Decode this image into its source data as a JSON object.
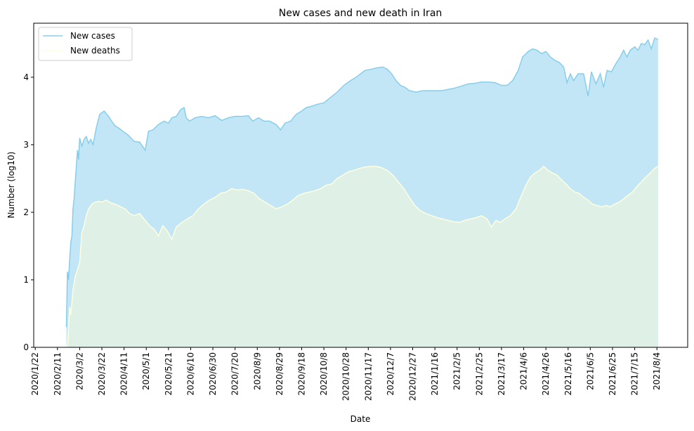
{
  "chart_data": {
    "type": "area",
    "title": "New cases and new death in Iran",
    "xlabel": "Date",
    "ylabel": "Number (log10)",
    "ylim": [
      0,
      4.8
    ],
    "yticks": [
      "0",
      "1",
      "2",
      "3",
      "4"
    ],
    "xticks": [
      "2020/1/22",
      "2020/2/11",
      "2020/3/2",
      "2020/3/22",
      "2020/4/11",
      "2020/5/1",
      "2020/5/21",
      "2020/6/10",
      "2020/6/30",
      "2020/7/20",
      "2020/8/9",
      "2020/8/29",
      "2020/9/18",
      "2020/10/8",
      "2020/10/28",
      "2020/11/17",
      "2020/12/7",
      "2020/12/27",
      "2021/1/16",
      "2021/2/5",
      "2021/2/25",
      "2021/3/17",
      "2021/4/6",
      "2021/4/26",
      "2021/5/16",
      "2021/6/5",
      "2021/6/25",
      "2021/7/15",
      "2021/8/4"
    ],
    "legend_position": "top-left",
    "grid": false,
    "series": [
      {
        "name": "New cases",
        "color": "#87ceeb",
        "fill": "#c2e6f5",
        "points": [
          [
            "2020/2/19",
            0.3
          ],
          [
            "2020/2/20",
            1.12
          ],
          [
            "2020/2/21",
            1.0
          ],
          [
            "2020/2/22",
            1.3
          ],
          [
            "2020/2/23",
            1.55
          ],
          [
            "2020/2/24",
            1.65
          ],
          [
            "2020/2/25",
            2.05
          ],
          [
            "2020/2/26",
            2.2
          ],
          [
            "2020/2/27",
            2.45
          ],
          [
            "2020/2/28",
            2.68
          ],
          [
            "2020/2/29",
            2.92
          ],
          [
            "2020/3/1",
            2.78
          ],
          [
            "2020/3/2",
            3.1
          ],
          [
            "2020/3/4",
            2.98
          ],
          [
            "2020/3/6",
            3.08
          ],
          [
            "2020/3/8",
            3.12
          ],
          [
            "2020/3/10",
            3.02
          ],
          [
            "2020/3/12",
            3.08
          ],
          [
            "2020/3/14",
            3.0
          ],
          [
            "2020/3/17",
            3.25
          ],
          [
            "2020/3/20",
            3.45
          ],
          [
            "2020/3/24",
            3.5
          ],
          [
            "2020/3/28",
            3.42
          ],
          [
            "2020/4/1",
            3.32
          ],
          [
            "2020/4/3",
            3.28
          ],
          [
            "2020/4/6",
            3.25
          ],
          [
            "2020/4/10",
            3.2
          ],
          [
            "2020/4/15",
            3.14
          ],
          [
            "2020/4/20",
            3.05
          ],
          [
            "2020/4/25",
            3.04
          ],
          [
            "2020/4/30",
            2.92
          ],
          [
            "2020/5/3",
            3.2
          ],
          [
            "2020/5/7",
            3.22
          ],
          [
            "2020/5/12",
            3.3
          ],
          [
            "2020/5/17",
            3.35
          ],
          [
            "2020/5/21",
            3.32
          ],
          [
            "2020/5/24",
            3.4
          ],
          [
            "2020/5/28",
            3.42
          ],
          [
            "2020/6/1",
            3.52
          ],
          [
            "2020/6/4",
            3.55
          ],
          [
            "2020/6/6",
            3.4
          ],
          [
            "2020/6/9",
            3.35
          ],
          [
            "2020/6/14",
            3.4
          ],
          [
            "2020/6/20",
            3.42
          ],
          [
            "2020/6/26",
            3.4
          ],
          [
            "2020/7/2",
            3.43
          ],
          [
            "2020/7/8",
            3.36
          ],
          [
            "2020/7/14",
            3.4
          ],
          [
            "2020/7/20",
            3.42
          ],
          [
            "2020/7/26",
            3.42
          ],
          [
            "2020/8/1",
            3.43
          ],
          [
            "2020/8/5",
            3.35
          ],
          [
            "2020/8/10",
            3.4
          ],
          [
            "2020/8/15",
            3.35
          ],
          [
            "2020/8/20",
            3.35
          ],
          [
            "2020/8/26",
            3.3
          ],
          [
            "2020/8/30",
            3.22
          ],
          [
            "2020/9/3",
            3.32
          ],
          [
            "2020/9/8",
            3.35
          ],
          [
            "2020/9/13",
            3.45
          ],
          [
            "2020/9/18",
            3.5
          ],
          [
            "2020/9/22",
            3.55
          ],
          [
            "2020/9/27",
            3.57
          ],
          [
            "2020/10/2",
            3.6
          ],
          [
            "2020/10/8",
            3.62
          ],
          [
            "2020/10/14",
            3.7
          ],
          [
            "2020/10/20",
            3.78
          ],
          [
            "2020/10/26",
            3.88
          ],
          [
            "2020/11/1",
            3.95
          ],
          [
            "2020/11/6",
            4.0
          ],
          [
            "2020/11/10",
            4.05
          ],
          [
            "2020/11/14",
            4.1
          ],
          [
            "2020/11/20",
            4.12
          ],
          [
            "2020/11/25",
            4.14
          ],
          [
            "2020/11/30",
            4.15
          ],
          [
            "2020/12/4",
            4.12
          ],
          [
            "2020/12/8",
            4.05
          ],
          [
            "2020/12/12",
            3.95
          ],
          [
            "2020/12/16",
            3.88
          ],
          [
            "2020/12/20",
            3.85
          ],
          [
            "2020/12/24",
            3.8
          ],
          [
            "2020/12/30",
            3.78
          ],
          [
            "2021/1/5",
            3.8
          ],
          [
            "2021/1/10",
            3.8
          ],
          [
            "2021/1/16",
            3.8
          ],
          [
            "2021/1/22",
            3.8
          ],
          [
            "2021/1/28",
            3.82
          ],
          [
            "2021/2/3",
            3.84
          ],
          [
            "2021/2/9",
            3.87
          ],
          [
            "2021/2/15",
            3.9
          ],
          [
            "2021/2/21",
            3.91
          ],
          [
            "2021/2/27",
            3.93
          ],
          [
            "2021/3/5",
            3.93
          ],
          [
            "2021/3/11",
            3.92
          ],
          [
            "2021/3/17",
            3.88
          ],
          [
            "2021/3/22",
            3.88
          ],
          [
            "2021/3/27",
            3.95
          ],
          [
            "2021/4/1",
            4.1
          ],
          [
            "2021/4/5",
            4.3
          ],
          [
            "2021/4/10",
            4.38
          ],
          [
            "2021/4/14",
            4.42
          ],
          [
            "2021/4/18",
            4.4
          ],
          [
            "2021/4/22",
            4.35
          ],
          [
            "2021/4/26",
            4.38
          ],
          [
            "2021/4/30",
            4.3
          ],
          [
            "2021/5/4",
            4.25
          ],
          [
            "2021/5/8",
            4.22
          ],
          [
            "2021/5/12",
            4.15
          ],
          [
            "2021/5/15",
            3.92
          ],
          [
            "2021/5/18",
            4.05
          ],
          [
            "2021/5/21",
            3.95
          ],
          [
            "2021/5/25",
            4.05
          ],
          [
            "2021/5/30",
            4.05
          ],
          [
            "2021/6/3",
            3.72
          ],
          [
            "2021/6/6",
            4.08
          ],
          [
            "2021/6/10",
            3.9
          ],
          [
            "2021/6/14",
            4.05
          ],
          [
            "2021/6/17",
            3.85
          ],
          [
            "2021/6/20",
            4.1
          ],
          [
            "2021/6/24",
            4.08
          ],
          [
            "2021/6/28",
            4.2
          ],
          [
            "2021/7/2",
            4.3
          ],
          [
            "2021/7/5",
            4.4
          ],
          [
            "2021/7/8",
            4.3
          ],
          [
            "2021/7/11",
            4.4
          ],
          [
            "2021/7/15",
            4.45
          ],
          [
            "2021/7/18",
            4.4
          ],
          [
            "2021/7/21",
            4.5
          ],
          [
            "2021/7/24",
            4.48
          ],
          [
            "2021/7/27",
            4.55
          ],
          [
            "2021/7/30",
            4.42
          ],
          [
            "2021/8/2",
            4.58
          ],
          [
            "2021/8/5",
            4.56
          ]
        ]
      },
      {
        "name": "New deaths",
        "color": "#ffffe0",
        "fill": "#dff0e6",
        "points": [
          [
            "2020/2/19",
            0.0
          ],
          [
            "2020/2/20",
            0.0
          ],
          [
            "2020/2/21",
            0.3
          ],
          [
            "2020/2/22",
            0.6
          ],
          [
            "2020/2/23",
            0.48
          ],
          [
            "2020/2/25",
            0.85
          ],
          [
            "2020/2/27",
            1.05
          ],
          [
            "2020/2/29",
            1.15
          ],
          [
            "2020/3/2",
            1.25
          ],
          [
            "2020/3/4",
            1.7
          ],
          [
            "2020/3/6",
            1.8
          ],
          [
            "2020/3/8",
            1.95
          ],
          [
            "2020/3/10",
            2.05
          ],
          [
            "2020/3/13",
            2.12
          ],
          [
            "2020/3/16",
            2.15
          ],
          [
            "2020/3/19",
            2.16
          ],
          [
            "2020/3/22",
            2.15
          ],
          [
            "2020/3/26",
            2.18
          ],
          [
            "2020/3/30",
            2.14
          ],
          [
            "2020/4/3",
            2.12
          ],
          [
            "2020/4/8",
            2.08
          ],
          [
            "2020/4/12",
            2.05
          ],
          [
            "2020/4/16",
            1.98
          ],
          [
            "2020/4/20",
            1.95
          ],
          [
            "2020/4/25",
            1.98
          ],
          [
            "2020/4/30",
            1.88
          ],
          [
            "2020/5/4",
            1.8
          ],
          [
            "2020/5/8",
            1.75
          ],
          [
            "2020/5/12",
            1.65
          ],
          [
            "2020/5/16",
            1.8
          ],
          [
            "2020/5/20",
            1.72
          ],
          [
            "2020/5/24",
            1.6
          ],
          [
            "2020/5/28",
            1.78
          ],
          [
            "2020/6/2",
            1.85
          ],
          [
            "2020/6/7",
            1.9
          ],
          [
            "2020/6/12",
            1.95
          ],
          [
            "2020/6/17",
            2.05
          ],
          [
            "2020/6/22",
            2.12
          ],
          [
            "2020/6/27",
            2.18
          ],
          [
            "2020/7/2",
            2.22
          ],
          [
            "2020/7/7",
            2.28
          ],
          [
            "2020/7/12",
            2.3
          ],
          [
            "2020/7/17",
            2.35
          ],
          [
            "2020/7/22",
            2.33
          ],
          [
            "2020/7/27",
            2.34
          ],
          [
            "2020/8/1",
            2.32
          ],
          [
            "2020/8/6",
            2.28
          ],
          [
            "2020/8/11",
            2.2
          ],
          [
            "2020/8/16",
            2.15
          ],
          [
            "2020/8/21",
            2.1
          ],
          [
            "2020/8/26",
            2.05
          ],
          [
            "2020/8/31",
            2.08
          ],
          [
            "2020/9/5",
            2.12
          ],
          [
            "2020/9/10",
            2.18
          ],
          [
            "2020/9/15",
            2.25
          ],
          [
            "2020/9/20",
            2.28
          ],
          [
            "2020/9/25",
            2.3
          ],
          [
            "2020/9/30",
            2.32
          ],
          [
            "2020/10/5",
            2.35
          ],
          [
            "2020/10/10",
            2.4
          ],
          [
            "2020/10/15",
            2.42
          ],
          [
            "2020/10/20",
            2.5
          ],
          [
            "2020/10/25",
            2.55
          ],
          [
            "2020/10/30",
            2.6
          ],
          [
            "2020/11/4",
            2.62
          ],
          [
            "2020/11/9",
            2.65
          ],
          [
            "2020/11/14",
            2.67
          ],
          [
            "2020/11/19",
            2.68
          ],
          [
            "2020/11/24",
            2.68
          ],
          [
            "2020/11/29",
            2.66
          ],
          [
            "2020/12/4",
            2.62
          ],
          [
            "2020/12/9",
            2.55
          ],
          [
            "2020/12/14",
            2.45
          ],
          [
            "2020/12/19",
            2.35
          ],
          [
            "2020/12/24",
            2.22
          ],
          [
            "2020/12/29",
            2.1
          ],
          [
            "2021/1/3",
            2.02
          ],
          [
            "2021/1/8",
            1.98
          ],
          [
            "2021/1/13",
            1.95
          ],
          [
            "2021/1/18",
            1.92
          ],
          [
            "2021/1/23",
            1.9
          ],
          [
            "2021/1/28",
            1.88
          ],
          [
            "2021/2/2",
            1.86
          ],
          [
            "2021/2/7",
            1.85
          ],
          [
            "2021/2/12",
            1.88
          ],
          [
            "2021/2/17",
            1.9
          ],
          [
            "2021/2/22",
            1.92
          ],
          [
            "2021/2/27",
            1.95
          ],
          [
            "2021/3/4",
            1.9
          ],
          [
            "2021/3/8",
            1.78
          ],
          [
            "2021/3/12",
            1.88
          ],
          [
            "2021/3/16",
            1.85
          ],
          [
            "2021/3/20",
            1.9
          ],
          [
            "2021/3/25",
            1.95
          ],
          [
            "2021/3/30",
            2.05
          ],
          [
            "2021/4/4",
            2.25
          ],
          [
            "2021/4/8",
            2.4
          ],
          [
            "2021/4/12",
            2.52
          ],
          [
            "2021/4/16",
            2.58
          ],
          [
            "2021/4/20",
            2.62
          ],
          [
            "2021/4/24",
            2.68
          ],
          [
            "2021/4/28",
            2.62
          ],
          [
            "2021/5/2",
            2.58
          ],
          [
            "2021/5/6",
            2.55
          ],
          [
            "2021/5/10",
            2.48
          ],
          [
            "2021/5/14",
            2.42
          ],
          [
            "2021/5/18",
            2.35
          ],
          [
            "2021/5/22",
            2.3
          ],
          [
            "2021/5/26",
            2.28
          ],
          [
            "2021/5/30",
            2.22
          ],
          [
            "2021/6/3",
            2.18
          ],
          [
            "2021/6/7",
            2.12
          ],
          [
            "2021/6/11",
            2.1
          ],
          [
            "2021/6/15",
            2.08
          ],
          [
            "2021/6/19",
            2.1
          ],
          [
            "2021/6/23",
            2.08
          ],
          [
            "2021/6/27",
            2.12
          ],
          [
            "2021/7/1",
            2.15
          ],
          [
            "2021/7/5",
            2.2
          ],
          [
            "2021/7/9",
            2.25
          ],
          [
            "2021/7/13",
            2.3
          ],
          [
            "2021/7/17",
            2.38
          ],
          [
            "2021/7/21",
            2.45
          ],
          [
            "2021/7/25",
            2.52
          ],
          [
            "2021/7/29",
            2.58
          ],
          [
            "2021/8/2",
            2.65
          ],
          [
            "2021/8/5",
            2.68
          ]
        ]
      }
    ]
  }
}
